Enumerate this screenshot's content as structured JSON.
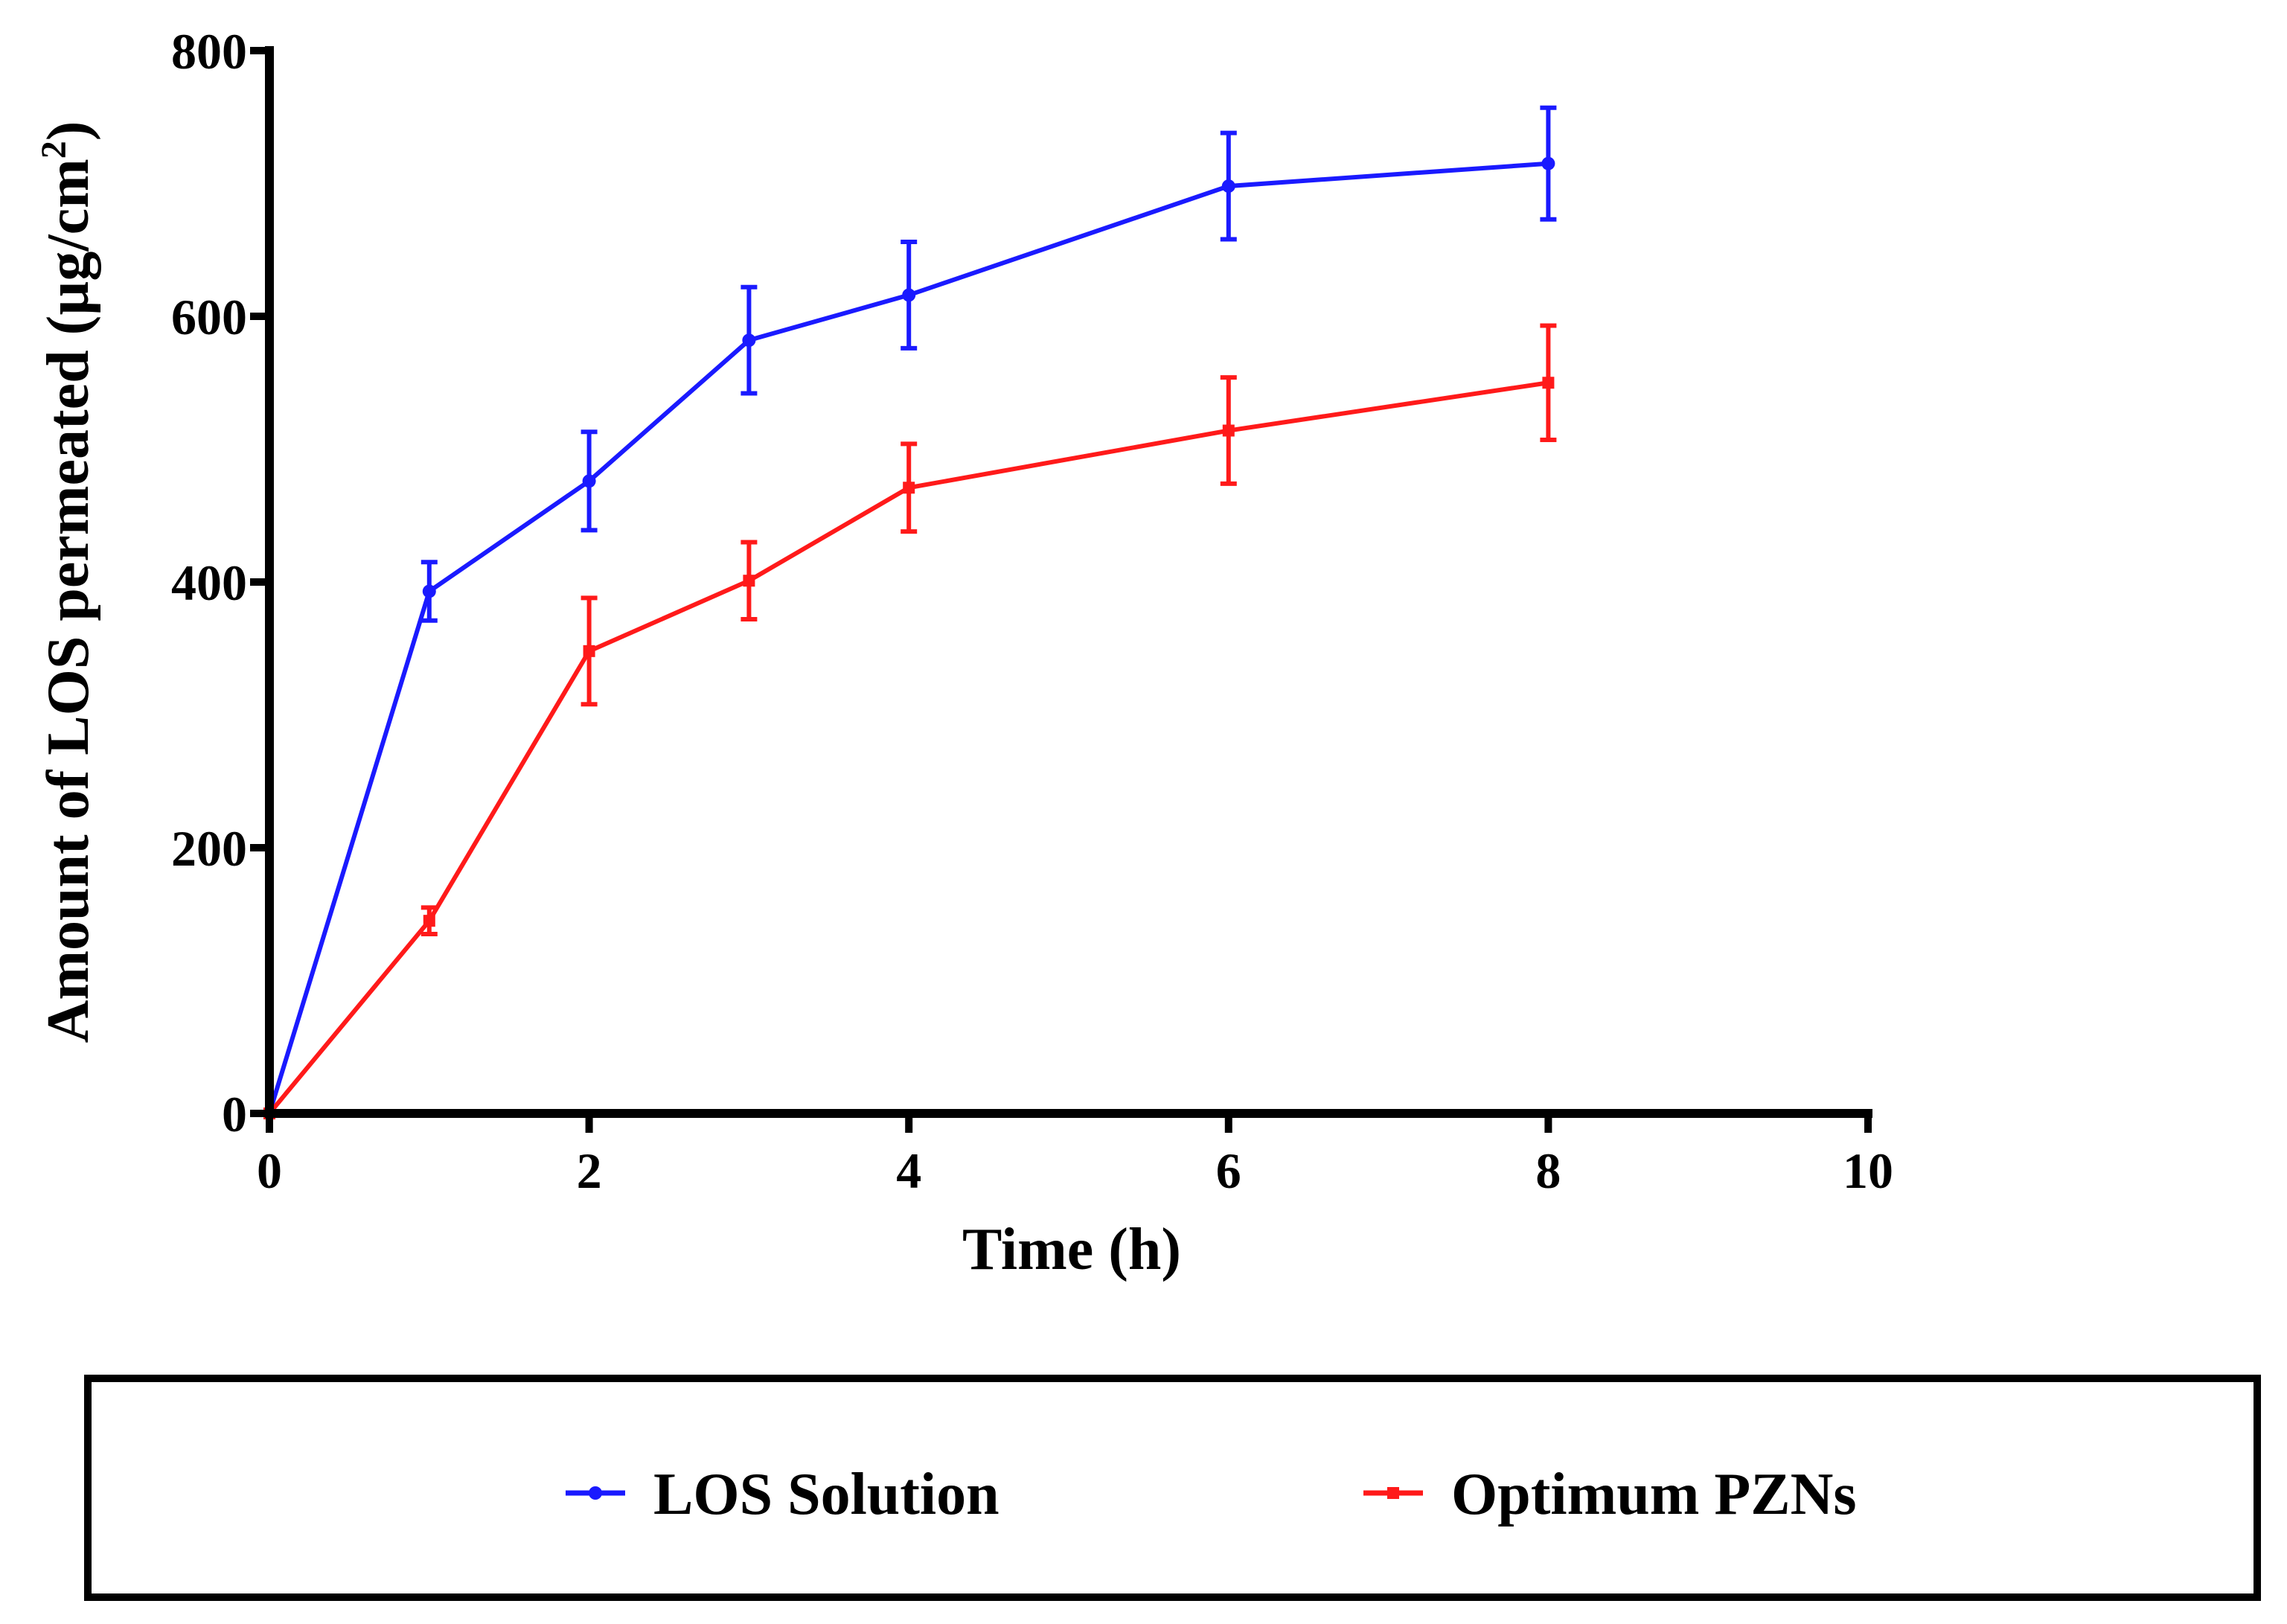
{
  "chart_data": {
    "type": "line",
    "title": "",
    "xlabel": "Time (h)",
    "ylabel": {
      "main": "Amount of LOS permeated (µg/cm",
      "superscript": "2",
      "close": ")"
    },
    "xlim": [
      0,
      10
    ],
    "ylim": [
      0,
      800
    ],
    "xticks": [
      "0",
      "2",
      "4",
      "6",
      "8",
      "10"
    ],
    "yticks": [
      "0",
      "200",
      "400",
      "600",
      "800"
    ],
    "grid": false,
    "legend_position": "bottom",
    "series": [
      {
        "name": "LOS Solution",
        "color": "#1a1aff",
        "marker": "circle",
        "x": [
          0,
          1,
          2,
          3,
          4,
          6,
          8
        ],
        "y": [
          0,
          393,
          476,
          582,
          616,
          698,
          715
        ],
        "error": [
          0,
          22,
          37,
          40,
          40,
          40,
          42
        ]
      },
      {
        "name": "Optimum PZNs",
        "color": "#ff1a1a",
        "marker": "square",
        "x": [
          0,
          1,
          2,
          3,
          4,
          6,
          8
        ],
        "y": [
          0,
          145,
          348,
          401,
          471,
          514,
          550
        ],
        "error": [
          0,
          10,
          40,
          29,
          33,
          40,
          43
        ]
      }
    ]
  }
}
